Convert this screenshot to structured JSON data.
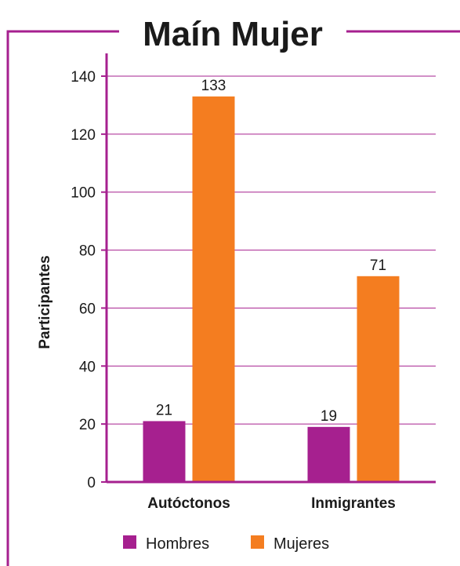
{
  "chart_data": {
    "type": "bar",
    "title": "Maín Mujer",
    "ylabel": "Participantes",
    "xlabel": "",
    "categories": [
      "Autóctonos",
      "Inmigrantes"
    ],
    "series": [
      {
        "name": "Hombres",
        "values": [
          21,
          19
        ],
        "color": "#a6208f"
      },
      {
        "name": "Mujeres",
        "values": [
          133,
          71
        ],
        "color": "#f47d20"
      }
    ],
    "ylim": [
      0,
      140
    ],
    "yticks": [
      0,
      20,
      40,
      60,
      80,
      100,
      120,
      140
    ],
    "grid": true,
    "gridColor": "#a6208f",
    "frameColor": "#a6208f",
    "legend_position": "bottom"
  }
}
